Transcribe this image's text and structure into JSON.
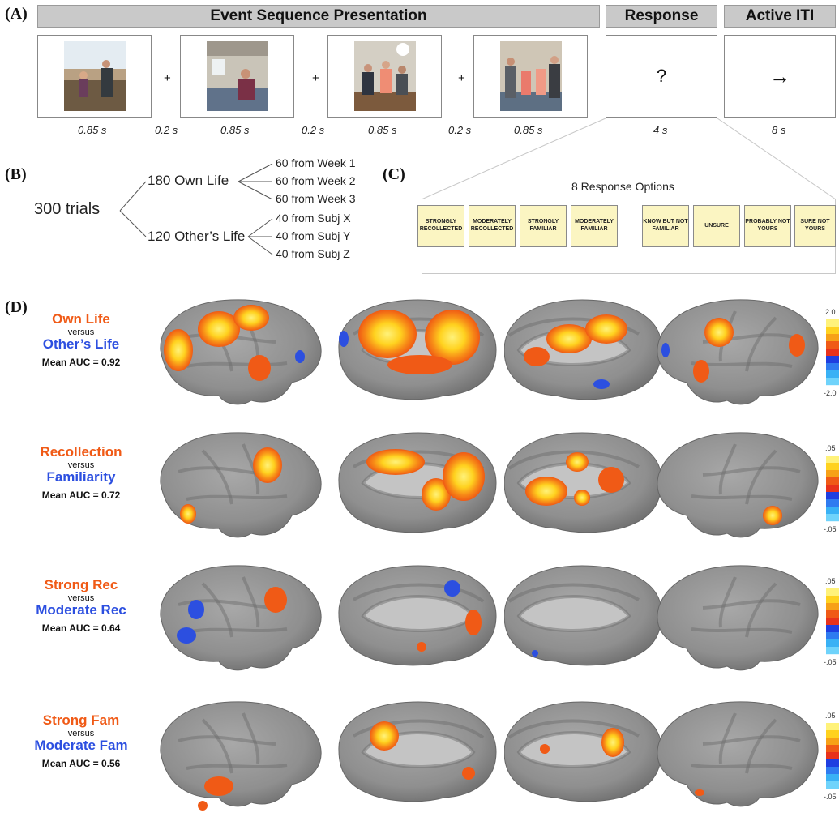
{
  "panel_labels": {
    "a": "(A)",
    "b": "(B)",
    "c": "(C)",
    "d": "(D)"
  },
  "panel_a": {
    "headers": {
      "sequence": "Event Sequence Presentation",
      "response": "Response",
      "iti": "Active ITI"
    },
    "plus": "+",
    "response_symbol": "?",
    "iti_symbol": "→",
    "timings": [
      "0.85 s",
      "0.2 s",
      "0.85 s",
      "0.2 s",
      "0.85 s",
      "0.2 s",
      "0.85 s",
      "4 s",
      "8 s"
    ]
  },
  "panel_b": {
    "root": "300 trials",
    "own": "180 Own Life",
    "other": "120 Other’s Life",
    "own_children": [
      "60 from Week 1",
      "60 from Week 2",
      "60 from Week 3"
    ],
    "other_children": [
      "40 from Subj X",
      "40 from Subj Y",
      "40 from Subj Z"
    ]
  },
  "panel_c": {
    "title": "8 Response Options",
    "options": [
      "STRONGLY RECOLLECTED",
      "MODERATELY RECOLLECTED",
      "STRONGLY FAMILIAR",
      "MODERATELY FAMILIAR",
      "KNOW BUT NOT FAMILIAR",
      "UNSURE",
      "PROBABLY NOT YOURS",
      "SURE NOT YOURS"
    ]
  },
  "panel_d": {
    "rows": [
      {
        "a": "Own Life",
        "versus": "versus",
        "b": "Other’s Life",
        "auc": "Mean AUC = 0.92",
        "cb_top": "2.0",
        "cb_bottom": "-2.0"
      },
      {
        "a": "Recollection",
        "versus": "versus",
        "b": "Familiarity",
        "auc": "Mean AUC = 0.72",
        "cb_top": ".05",
        "cb_bottom": "-.05"
      },
      {
        "a": "Strong Rec",
        "versus": "versus",
        "b": "Moderate Rec",
        "auc": "Mean AUC = 0.64",
        "cb_top": ".05",
        "cb_bottom": "-.05"
      },
      {
        "a": "Strong Fam",
        "versus": "versus",
        "b": "Moderate Fam",
        "auc": "Mean AUC = 0.56",
        "cb_top": ".05",
        "cb_bottom": "-.05"
      }
    ]
  },
  "colors": {
    "orange": "#f05a16",
    "blue": "#2c4fe0",
    "yellow": "#ffe93a",
    "cortex": "#9a9a9a",
    "option_fill": "#fbf5c2"
  }
}
